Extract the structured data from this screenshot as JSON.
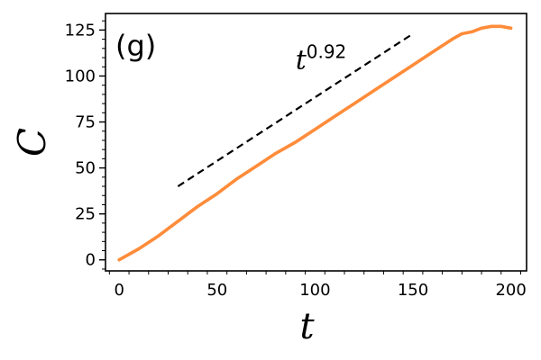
{
  "chart_data": {
    "type": "line",
    "panel_label": "(g)",
    "xlabel": "t",
    "ylabel": "C",
    "xlim": [
      -7,
      208
    ],
    "ylim": [
      -6,
      134
    ],
    "x_ticks": [
      0,
      50,
      100,
      150,
      200
    ],
    "y_ticks": [
      0,
      25,
      50,
      75,
      100,
      125
    ],
    "x_tick_labels": [
      "0",
      "50",
      "100",
      "150",
      "200"
    ],
    "y_tick_labels": [
      "0",
      "25",
      "50",
      "75",
      "100",
      "125"
    ],
    "grid": false,
    "series": [
      {
        "color": "#ff8c3a",
        "x": [
          0,
          10,
          20,
          30,
          40,
          50,
          60,
          70,
          80,
          90,
          100,
          110,
          120,
          130,
          140,
          150,
          160,
          170,
          175,
          180,
          185,
          190,
          195,
          200
        ],
        "y": [
          0,
          6,
          13,
          21,
          29,
          36,
          44,
          51,
          58,
          64,
          71,
          78,
          85,
          92,
          99,
          106,
          113,
          120,
          123,
          124,
          126,
          127,
          127,
          126
        ]
      }
    ],
    "reference_line": {
      "style": "dashed",
      "color": "#000000",
      "x": [
        30,
        150
      ],
      "y": [
        40,
        123
      ]
    },
    "annotation": {
      "base": "t",
      "exponent": "0.92",
      "x": 90,
      "y": 104
    }
  }
}
